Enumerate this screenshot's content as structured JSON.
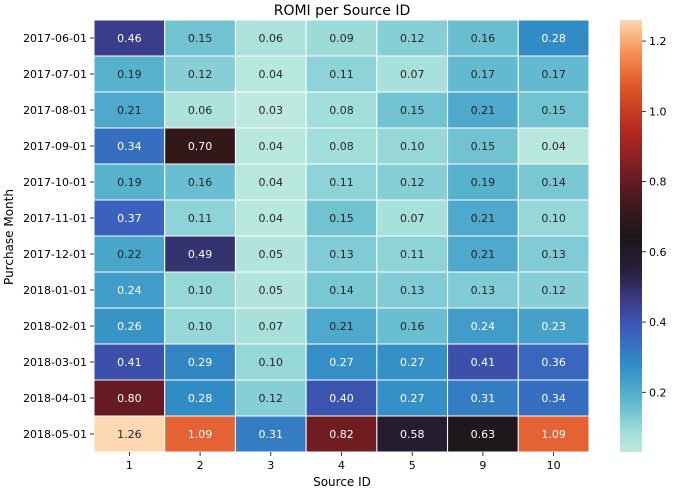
{
  "chart_data": {
    "type": "heatmap",
    "title": "ROMI per Source ID",
    "xlabel": "Source ID",
    "ylabel": "Purchase Month",
    "x_categories": [
      "1",
      "2",
      "3",
      "4",
      "5",
      "9",
      "10"
    ],
    "y_categories": [
      "2017-06-01",
      "2017-07-01",
      "2017-08-01",
      "2017-09-01",
      "2017-10-01",
      "2017-11-01",
      "2017-12-01",
      "2018-01-01",
      "2018-02-01",
      "2018-03-01",
      "2018-04-01",
      "2018-05-01"
    ],
    "values": [
      [
        0.46,
        0.15,
        0.06,
        0.09,
        0.12,
        0.16,
        0.28
      ],
      [
        0.19,
        0.12,
        0.04,
        0.11,
        0.07,
        0.17,
        0.17
      ],
      [
        0.21,
        0.06,
        0.03,
        0.08,
        0.15,
        0.21,
        0.15
      ],
      [
        0.34,
        0.7,
        0.04,
        0.08,
        0.1,
        0.15,
        0.04
      ],
      [
        0.19,
        0.16,
        0.04,
        0.11,
        0.12,
        0.19,
        0.14
      ],
      [
        0.37,
        0.11,
        0.04,
        0.15,
        0.07,
        0.21,
        0.1
      ],
      [
        0.22,
        0.49,
        0.05,
        0.13,
        0.11,
        0.21,
        0.13
      ],
      [
        0.24,
        0.1,
        0.05,
        0.14,
        0.13,
        0.13,
        0.12
      ],
      [
        0.26,
        0.1,
        0.07,
        0.21,
        0.16,
        0.24,
        0.23
      ],
      [
        0.41,
        0.29,
        0.1,
        0.27,
        0.27,
        0.41,
        0.36
      ],
      [
        0.8,
        0.28,
        0.12,
        0.4,
        0.27,
        0.31,
        0.34
      ],
      [
        1.26,
        1.09,
        0.31,
        0.82,
        0.58,
        0.63,
        1.09
      ]
    ],
    "value_labels": [
      [
        "0.46",
        "0.15",
        "0.06",
        "0.09",
        "0.12",
        "0.16",
        "0.28"
      ],
      [
        "0.19",
        "0.12",
        "0.04",
        "0.11",
        "0.07",
        "0.17",
        "0.17"
      ],
      [
        "0.21",
        "0.06",
        "0.03",
        "0.08",
        "0.15",
        "0.21",
        "0.15"
      ],
      [
        "0.34",
        "0.70",
        "0.04",
        "0.08",
        "0.10",
        "0.15",
        "0.04"
      ],
      [
        "0.19",
        "0.16",
        "0.04",
        "0.11",
        "0.12",
        "0.19",
        "0.14"
      ],
      [
        "0.37",
        "0.11",
        "0.04",
        "0.15",
        "0.07",
        "0.21",
        "0.10"
      ],
      [
        "0.22",
        "0.49",
        "0.05",
        "0.13",
        "0.11",
        "0.21",
        "0.13"
      ],
      [
        "0.24",
        "0.10",
        "0.05",
        "0.14",
        "0.13",
        "0.13",
        "0.12"
      ],
      [
        "0.26",
        "0.10",
        "0.07",
        "0.21",
        "0.16",
        "0.24",
        "0.23"
      ],
      [
        "0.41",
        "0.29",
        "0.10",
        "0.27",
        "0.27",
        "0.41",
        "0.36"
      ],
      [
        "0.80",
        "0.28",
        "0.12",
        "0.40",
        "0.27",
        "0.31",
        "0.34"
      ],
      [
        "1.26",
        "1.09",
        "0.31",
        "0.82",
        "0.58",
        "0.63",
        "1.09"
      ]
    ],
    "colormap": "icefire",
    "color_range": [
      0.03,
      1.26
    ],
    "colorbar_ticks": [
      0.2,
      0.4,
      0.6,
      0.8,
      1.0,
      1.2
    ],
    "colorbar_tick_labels": [
      "0.2",
      "0.4",
      "0.6",
      "0.8",
      "1.0",
      "1.2"
    ],
    "grid": false,
    "colorbar_position": "right"
  }
}
